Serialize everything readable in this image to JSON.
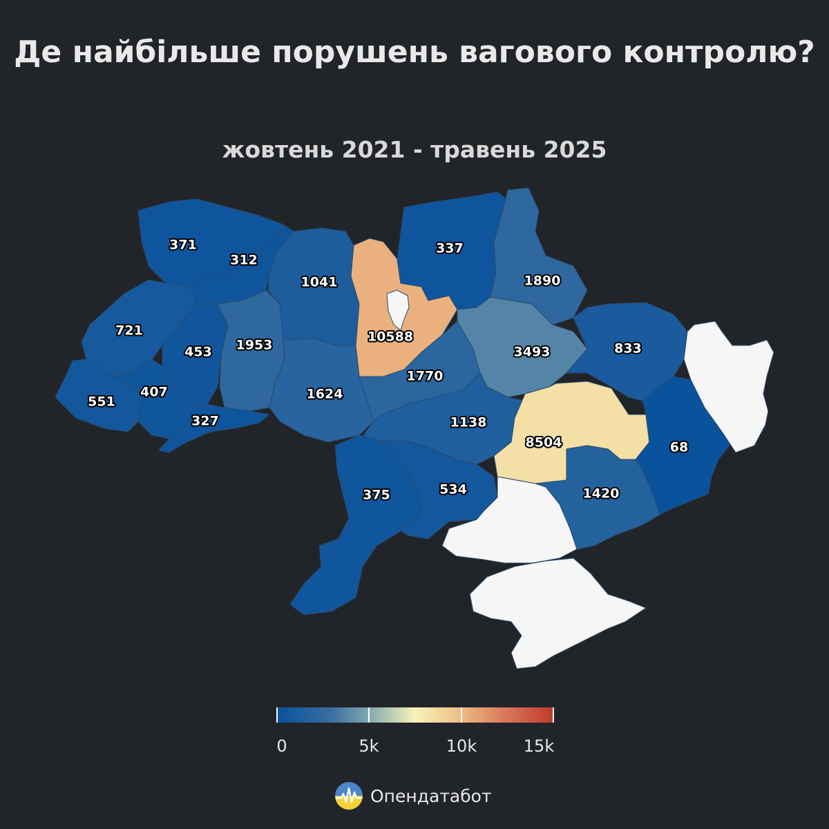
{
  "title": "Де найбільше порушень вагового контролю?",
  "subtitle": "жовтень 2021 - травень 2025",
  "brand": {
    "name": "Опендатабот",
    "logo_icon": "opendatabot-logo-icon"
  },
  "legend": {
    "min": 0,
    "max": 15000,
    "ticks": [
      {
        "value": 0,
        "label": "0"
      },
      {
        "value": 5000,
        "label": "5k"
      },
      {
        "value": 10000,
        "label": "10k"
      },
      {
        "value": 15000,
        "label": "15k"
      }
    ]
  },
  "colors": {
    "background": "#212429",
    "no_data": "#f6f6f6",
    "scale": [
      "#08519c",
      "#3a6fa0",
      "#7fa7b0",
      "#f7f3b8",
      "#efc28a",
      "#d9795a",
      "#c0392b"
    ]
  },
  "regions": [
    {
      "id": "volyn",
      "value": 371
    },
    {
      "id": "rivne",
      "value": 312
    },
    {
      "id": "zhytomyr",
      "value": 1041
    },
    {
      "id": "kyiv-oblast",
      "value": 10588
    },
    {
      "id": "chernihiv",
      "value": 337
    },
    {
      "id": "sumy",
      "value": 1890
    },
    {
      "id": "lviv",
      "value": 721
    },
    {
      "id": "ternopil",
      "value": 453
    },
    {
      "id": "khmelnytskyi",
      "value": 1953
    },
    {
      "id": "vinnytsia",
      "value": 1624
    },
    {
      "id": "cherkasy",
      "value": 1770
    },
    {
      "id": "poltava",
      "value": 3493
    },
    {
      "id": "kharkiv",
      "value": 833
    },
    {
      "id": "zakarpattia",
      "value": 551
    },
    {
      "id": "ivano-frankivsk",
      "value": 407
    },
    {
      "id": "chernivtsi",
      "value": 327
    },
    {
      "id": "kirovohrad",
      "value": 1138
    },
    {
      "id": "dnipropetrovsk",
      "value": 8504
    },
    {
      "id": "donetsk",
      "value": 68
    },
    {
      "id": "odesa",
      "value": 375
    },
    {
      "id": "mykolaiv",
      "value": 534
    },
    {
      "id": "zaporizhzhia",
      "value": 1420
    },
    {
      "id": "luhansk",
      "value": null
    },
    {
      "id": "kherson",
      "value": null
    },
    {
      "id": "crimea",
      "value": null
    },
    {
      "id": "kyiv-city",
      "value": null
    }
  ]
}
